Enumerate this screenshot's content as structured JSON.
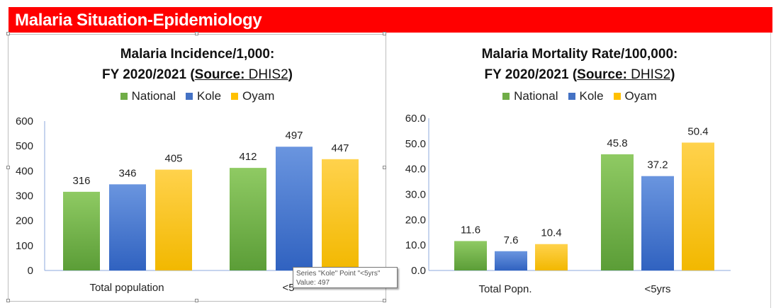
{
  "banner": {
    "title": "Malaria Situation-Epidemiology",
    "color": "#ff0000"
  },
  "colors": {
    "National": "#70ad47",
    "Kole": "#4472c4",
    "Oyam": "#ffc000"
  },
  "chart_data": [
    {
      "type": "bar",
      "title_line1": "Malaria Incidence/1,000:",
      "title_line2_prefix": "FY 2020/2021 (",
      "title_source_label": "Source:",
      "title_source_value": " DHIS2",
      "title_line2_suffix": ")",
      "categories": [
        "Total population",
        "<5yrs"
      ],
      "category_labels_shown": [
        "Total population",
        "<5"
      ],
      "series": [
        {
          "name": "National",
          "values": [
            316,
            412
          ]
        },
        {
          "name": "Kole",
          "values": [
            346,
            497
          ]
        },
        {
          "name": "Oyam",
          "values": [
            405,
            447
          ]
        }
      ],
      "value_labels": [
        [
          "316",
          "412"
        ],
        [
          "346",
          "497"
        ],
        [
          "405",
          "447"
        ]
      ],
      "ylim": [
        0,
        600
      ],
      "yticks": [
        "0",
        "100",
        "200",
        "300",
        "400",
        "500",
        "600"
      ],
      "legend_position": "top",
      "grid": false,
      "tooltip": {
        "line1": "Series \"Kole\" Point \"<5yrs\"",
        "line2": "Value: 497"
      }
    },
    {
      "type": "bar",
      "title_line1": "Malaria Mortality Rate/100,000:",
      "title_line2_prefix": "FY 2020/2021 (",
      "title_source_label": "Source:",
      "title_source_value": " DHIS2",
      "title_line2_suffix": ")",
      "categories": [
        "Total Popn.",
        "<5yrs"
      ],
      "category_labels_shown": [
        "Total Popn.",
        "<5yrs"
      ],
      "series": [
        {
          "name": "National",
          "values": [
            11.6,
            45.8
          ]
        },
        {
          "name": "Kole",
          "values": [
            7.6,
            37.2
          ]
        },
        {
          "name": "Oyam",
          "values": [
            10.4,
            50.4
          ]
        }
      ],
      "value_labels": [
        [
          "11.6",
          "45.8"
        ],
        [
          "7.6",
          "37.2"
        ],
        [
          "10.4",
          "50.4"
        ]
      ],
      "ylim": [
        0,
        60
      ],
      "yticks": [
        "0.0",
        "10.0",
        "20.0",
        "30.0",
        "40.0",
        "50.0",
        "60.0"
      ],
      "legend_position": "top",
      "grid": false
    }
  ]
}
